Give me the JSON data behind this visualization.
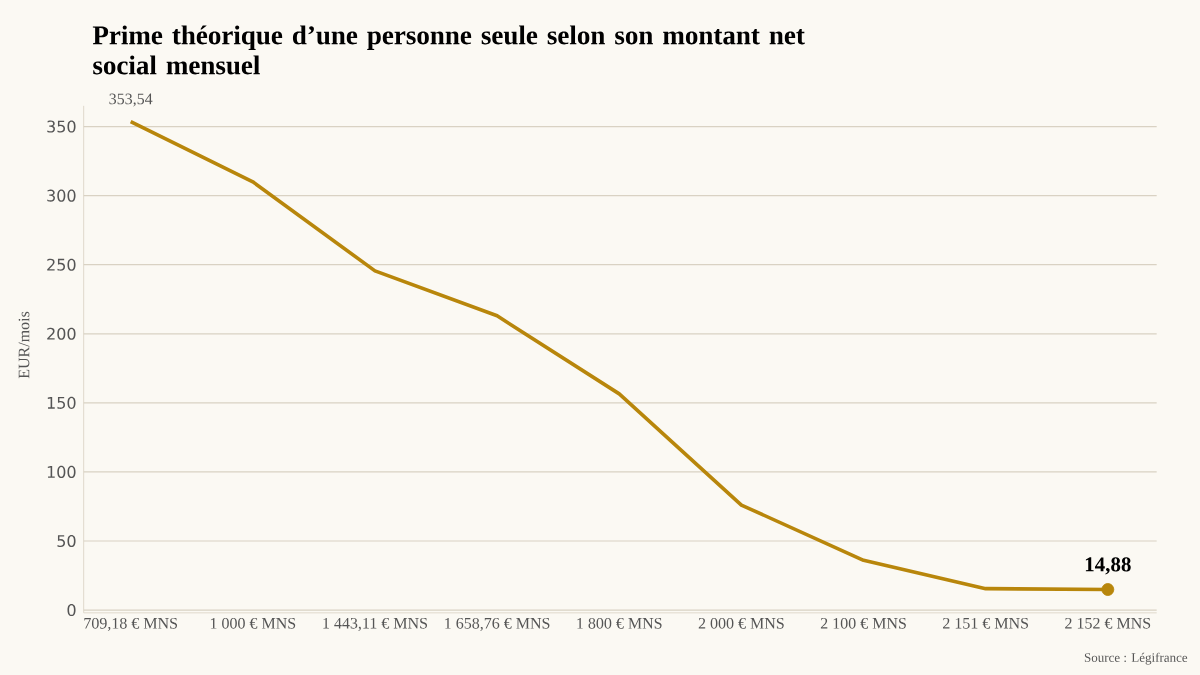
{
  "chart_data": {
    "type": "line",
    "title": "Prime théorique d’une personne seule selon son montant net social mensuel",
    "ylabel": "EUR/mois",
    "categories": [
      "709,18 € MNS",
      "1 000 € MNS",
      "1 443,11 € MNS",
      "1 658,76 € MNS",
      "1 800 € MNS",
      "2 000 € MNS",
      "2 100 € MNS",
      "2 151 € MNS",
      "2 152 € MNS"
    ],
    "series": [
      {
        "color": "#b8860b",
        "values": [
          353.54,
          310,
          245.5,
          213,
          156.5,
          76,
          36,
          15.5,
          14.88
        ],
        "value_labels": [
          "353,54",
          null,
          null,
          null,
          null,
          null,
          null,
          null,
          "14,88"
        ],
        "marker": "none"
      },
      {
        "type": "scatter",
        "color": "#b8860b",
        "x": [
          "2 152 € MNS"
        ],
        "values": [
          14.88
        ],
        "marker": "circle"
      }
    ],
    "ylim": [
      -2,
      365
    ],
    "yticks": [
      0,
      50,
      100,
      150,
      200,
      250,
      300,
      350
    ],
    "grid": "y",
    "annotations": [
      "Source : Légifrance"
    ]
  }
}
